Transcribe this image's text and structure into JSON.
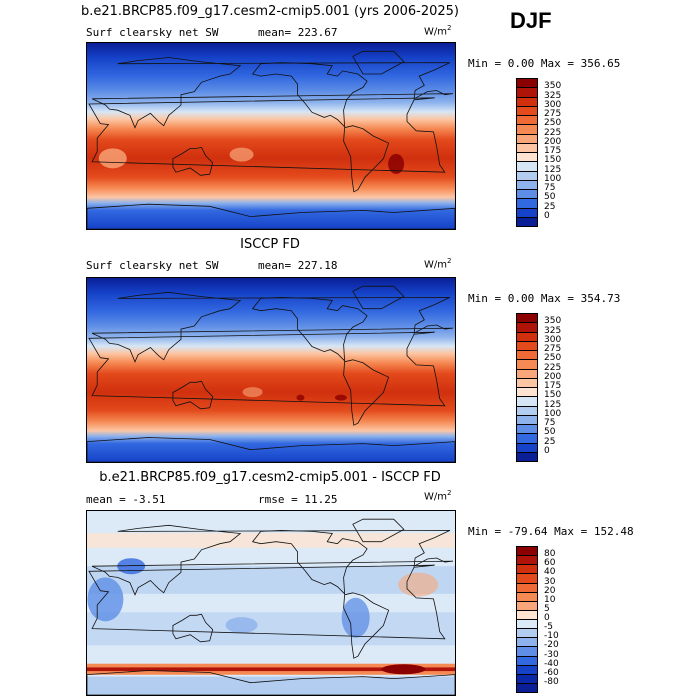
{
  "season": "DJF",
  "panels": [
    {
      "title": "b.e21.BRCP85.f09_g17.cesm2-cmip5.001 (yrs 2006-2025)",
      "variable": "Surf clearsky net SW",
      "stat1": "mean= 223.67",
      "stat2": "",
      "units_base": "W/m",
      "units_exp": "2",
      "minmax": "Min =    0.00 Max = 356.65",
      "colorbar": {
        "labels": [
          "350",
          "325",
          "300",
          "275",
          "250",
          "225",
          "200",
          "175",
          "150",
          "125",
          "100",
          "75",
          "50",
          "25",
          "0"
        ],
        "colors": [
          "#8b0000",
          "#b01408",
          "#d0300e",
          "#e34a1c",
          "#ef6a34",
          "#f68a54",
          "#f9a77a",
          "#fcc6a4",
          "#fde3d0",
          "#d6e6f5",
          "#b2cdf0",
          "#8db2ec",
          "#5e8ee6",
          "#3268e0",
          "#1542c8",
          "#0a1e96"
        ]
      },
      "map_type": "model"
    },
    {
      "title": "ISCCP FD",
      "variable": "Surf clearsky net SW",
      "stat1": "mean= 227.18",
      "stat2": "",
      "units_base": "W/m",
      "units_exp": "2",
      "minmax": "Min =    0.00 Max = 354.73",
      "colorbar": {
        "labels": [
          "350",
          "325",
          "300",
          "275",
          "250",
          "225",
          "200",
          "175",
          "150",
          "125",
          "100",
          "75",
          "50",
          "25",
          "0"
        ],
        "colors": [
          "#8b0000",
          "#b01408",
          "#d0300e",
          "#e34a1c",
          "#ef6a34",
          "#f68a54",
          "#f9a77a",
          "#fcc6a4",
          "#fde3d0",
          "#d6e6f5",
          "#b2cdf0",
          "#8db2ec",
          "#5e8ee6",
          "#3268e0",
          "#1542c8",
          "#0a1e96"
        ]
      },
      "map_type": "obs"
    },
    {
      "title": "b.e21.BRCP85.f09_g17.cesm2-cmip5.001 - ISCCP FD",
      "variable": "",
      "stat1": "mean =   -3.51",
      "stat2": "rmse =   11.25",
      "units_base": "W/m",
      "units_exp": "2",
      "minmax": "Min = -79.64 Max = 152.48",
      "colorbar": {
        "labels": [
          "80",
          "60",
          "40",
          "30",
          "20",
          "10",
          "5",
          "0",
          "-5",
          "-10",
          "-20",
          "-30",
          "-40",
          "-60",
          "-80"
        ],
        "colors": [
          "#8b0000",
          "#b01408",
          "#d0300e",
          "#e34a1c",
          "#ef6a34",
          "#f68a54",
          "#f9a77a",
          "#fde3d0",
          "#dce9f7",
          "#b2cdf0",
          "#8db2ec",
          "#5e8ee6",
          "#3268e0",
          "#1542c8",
          "#0a28a8",
          "#0a1e96"
        ]
      },
      "map_type": "diff"
    }
  ]
}
